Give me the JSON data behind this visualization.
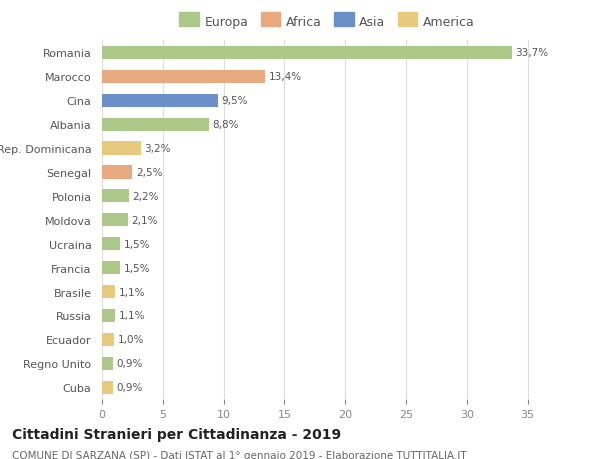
{
  "countries": [
    "Romania",
    "Marocco",
    "Cina",
    "Albania",
    "Rep. Dominicana",
    "Senegal",
    "Polonia",
    "Moldova",
    "Ucraina",
    "Francia",
    "Brasile",
    "Russia",
    "Ecuador",
    "Regno Unito",
    "Cuba"
  ],
  "values": [
    33.7,
    13.4,
    9.5,
    8.8,
    3.2,
    2.5,
    2.2,
    2.1,
    1.5,
    1.5,
    1.1,
    1.1,
    1.0,
    0.9,
    0.9
  ],
  "labels": [
    "33,7%",
    "13,4%",
    "9,5%",
    "8,8%",
    "3,2%",
    "2,5%",
    "2,2%",
    "2,1%",
    "1,5%",
    "1,5%",
    "1,1%",
    "1,1%",
    "1,0%",
    "0,9%",
    "0,9%"
  ],
  "colors": [
    "#adc98a",
    "#e8a97e",
    "#6b8fc9",
    "#adc98a",
    "#e8c97e",
    "#e8a97e",
    "#adc98a",
    "#adc98a",
    "#adc98a",
    "#adc98a",
    "#e8c97e",
    "#adc98a",
    "#e8c97e",
    "#adc98a",
    "#e8c97e"
  ],
  "legend_labels": [
    "Europa",
    "Africa",
    "Asia",
    "America"
  ],
  "legend_colors": [
    "#adc98a",
    "#e8a97e",
    "#6b8fc9",
    "#e8c97e"
  ],
  "title": "Cittadini Stranieri per Cittadinanza - 2019",
  "subtitle": "COMUNE DI SARZANA (SP) - Dati ISTAT al 1° gennaio 2019 - Elaborazione TUTTITALIA.IT",
  "xlim": [
    0,
    37
  ],
  "xticks": [
    0,
    5,
    10,
    15,
    20,
    25,
    30,
    35
  ],
  "bg_color": "#ffffff",
  "grid_color": "#dddddd",
  "bar_height": 0.55,
  "title_fontsize": 10,
  "subtitle_fontsize": 7.5,
  "label_fontsize": 7.5,
  "tick_fontsize": 8,
  "legend_fontsize": 9
}
